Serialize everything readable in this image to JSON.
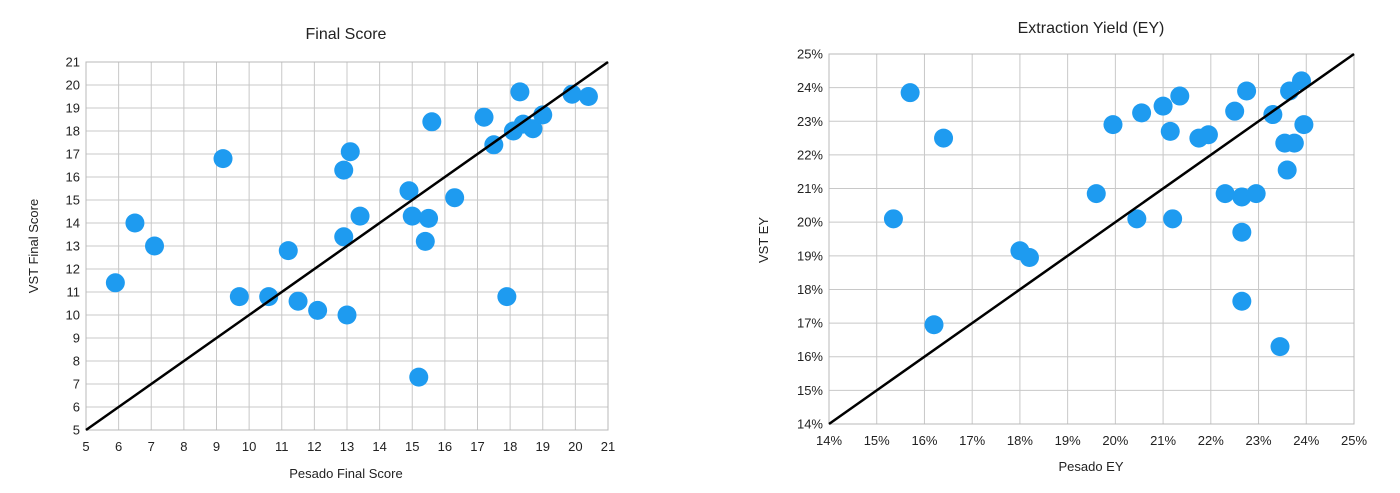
{
  "colors": {
    "point": "#1e9bf0",
    "line": "#000000",
    "grid": "#c8c8c8"
  },
  "chart_data": [
    {
      "type": "scatter",
      "title": "Final Score",
      "xlabel": "Pesado Final Score",
      "ylabel": "VST Final Score",
      "xlim": [
        5,
        21
      ],
      "ylim": [
        5,
        21
      ],
      "xticks": [
        5,
        6,
        7,
        8,
        9,
        10,
        11,
        12,
        13,
        14,
        15,
        16,
        17,
        18,
        19,
        20,
        21
      ],
      "yticks": [
        5,
        6,
        7,
        8,
        9,
        10,
        11,
        12,
        13,
        14,
        15,
        16,
        17,
        18,
        19,
        20,
        21
      ],
      "xtick_labels": [
        "5",
        "6",
        "7",
        "8",
        "9",
        "10",
        "11",
        "12",
        "13",
        "14",
        "15",
        "16",
        "17",
        "18",
        "19",
        "20",
        "21"
      ],
      "ytick_labels": [
        "5",
        "6",
        "7",
        "8",
        "9",
        "10",
        "11",
        "12",
        "13",
        "14",
        "15",
        "16",
        "17",
        "18",
        "19",
        "20",
        "21"
      ],
      "reference_line": {
        "from": [
          5,
          5
        ],
        "to": [
          21,
          21
        ]
      },
      "points": [
        [
          5.9,
          11.4
        ],
        [
          6.5,
          14.0
        ],
        [
          7.1,
          13.0
        ],
        [
          9.2,
          16.8
        ],
        [
          9.7,
          10.8
        ],
        [
          10.6,
          10.8
        ],
        [
          11.2,
          12.8
        ],
        [
          11.5,
          10.6
        ],
        [
          12.1,
          10.2
        ],
        [
          13.0,
          10.0
        ],
        [
          12.9,
          13.4
        ],
        [
          12.9,
          16.3
        ],
        [
          13.1,
          17.1
        ],
        [
          13.4,
          14.3
        ],
        [
          14.9,
          15.4
        ],
        [
          15.0,
          14.3
        ],
        [
          15.5,
          14.2
        ],
        [
          15.4,
          13.2
        ],
        [
          15.2,
          7.3
        ],
        [
          15.6,
          18.4
        ],
        [
          16.3,
          15.1
        ],
        [
          17.2,
          18.6
        ],
        [
          17.5,
          17.4
        ],
        [
          17.9,
          10.8
        ],
        [
          18.1,
          18.0
        ],
        [
          18.3,
          19.7
        ],
        [
          18.4,
          18.3
        ],
        [
          18.7,
          18.1
        ],
        [
          19.0,
          18.7
        ],
        [
          19.9,
          19.6
        ],
        [
          20.4,
          19.5
        ]
      ]
    },
    {
      "type": "scatter",
      "title": "Extraction Yield (EY)",
      "xlabel": "Pesado EY",
      "ylabel": "VST EY",
      "xlim": [
        14,
        25
      ],
      "ylim": [
        14,
        25
      ],
      "xticks": [
        14,
        15,
        16,
        17,
        18,
        19,
        20,
        21,
        22,
        23,
        24,
        25
      ],
      "yticks": [
        14,
        15,
        16,
        17,
        18,
        19,
        20,
        21,
        22,
        23,
        24,
        25
      ],
      "xtick_labels": [
        "14%",
        "15%",
        "16%",
        "17%",
        "18%",
        "19%",
        "20%",
        "21%",
        "22%",
        "23%",
        "24%",
        "25%"
      ],
      "ytick_labels": [
        "14%",
        "15%",
        "16%",
        "17%",
        "18%",
        "19%",
        "20%",
        "21%",
        "22%",
        "23%",
        "24%",
        "25%"
      ],
      "reference_line": {
        "from": [
          14,
          14
        ],
        "to": [
          25,
          25
        ]
      },
      "points": [
        [
          15.35,
          20.1
        ],
        [
          15.7,
          23.85
        ],
        [
          16.2,
          16.95
        ],
        [
          16.4,
          22.5
        ],
        [
          18.0,
          19.15
        ],
        [
          18.2,
          18.95
        ],
        [
          19.6,
          20.85
        ],
        [
          19.95,
          22.9
        ],
        [
          20.45,
          20.1
        ],
        [
          20.55,
          23.25
        ],
        [
          21.0,
          23.45
        ],
        [
          21.15,
          22.7
        ],
        [
          21.2,
          20.1
        ],
        [
          21.35,
          23.75
        ],
        [
          21.75,
          22.5
        ],
        [
          21.95,
          22.6
        ],
        [
          22.3,
          20.85
        ],
        [
          22.5,
          23.3
        ],
        [
          22.65,
          20.75
        ],
        [
          22.65,
          19.7
        ],
        [
          22.65,
          17.65
        ],
        [
          22.75,
          23.9
        ],
        [
          22.95,
          20.85
        ],
        [
          23.3,
          23.2
        ],
        [
          23.45,
          16.3
        ],
        [
          23.55,
          22.35
        ],
        [
          23.6,
          21.55
        ],
        [
          23.65,
          23.9
        ],
        [
          23.75,
          22.35
        ],
        [
          23.9,
          24.2
        ],
        [
          23.95,
          22.9
        ]
      ]
    }
  ]
}
